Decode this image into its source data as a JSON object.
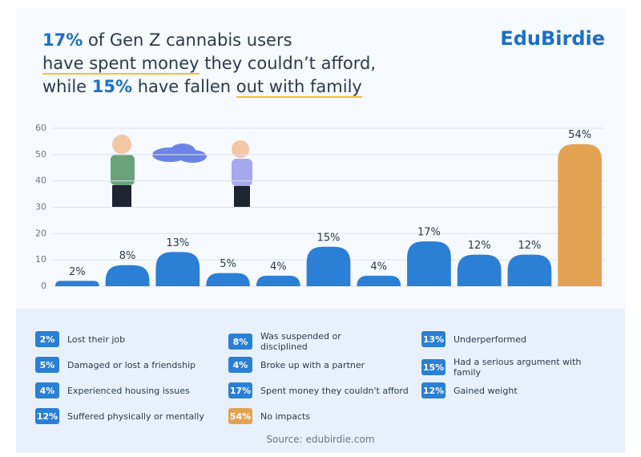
{
  "chart_data": {
    "type": "bar",
    "brand": "EduBirdie",
    "title": [
      "17%",
      " of Gen Z cannabis users",
      "have spent money",
      " they couldn’t afford,",
      "while ",
      "15%",
      " have fallen ",
      "out with family"
    ],
    "categories": [
      "Lost their job",
      "Was suspended or disciplined",
      "Underperformed",
      "Damaged or lost a friendship",
      "Broke up with a partner",
      "Had a serious argument with family",
      "Experienced housing issues",
      "Spent money they couldn't afford",
      "Gained weight",
      "Suffered physically or mentally",
      "No impacts"
    ],
    "values": [
      2,
      8,
      13,
      5,
      4,
      15,
      4,
      17,
      12,
      12,
      54
    ],
    "value_labels": [
      "2%",
      "8%",
      "13%",
      "5%",
      "4%",
      "15%",
      "4%",
      "17%",
      "12%",
      "12%",
      "54%"
    ],
    "colors": [
      "#2b7fd4",
      "#2b7fd4",
      "#2b7fd4",
      "#2b7fd4",
      "#2b7fd4",
      "#2b7fd4",
      "#2b7fd4",
      "#2b7fd4",
      "#2b7fd4",
      "#2b7fd4",
      "#e3a252"
    ],
    "ylim": [
      0,
      60
    ],
    "yticks": [
      0,
      10,
      20,
      30,
      40,
      50,
      60
    ],
    "grid": true,
    "source": "Source: edubirdie.com"
  }
}
